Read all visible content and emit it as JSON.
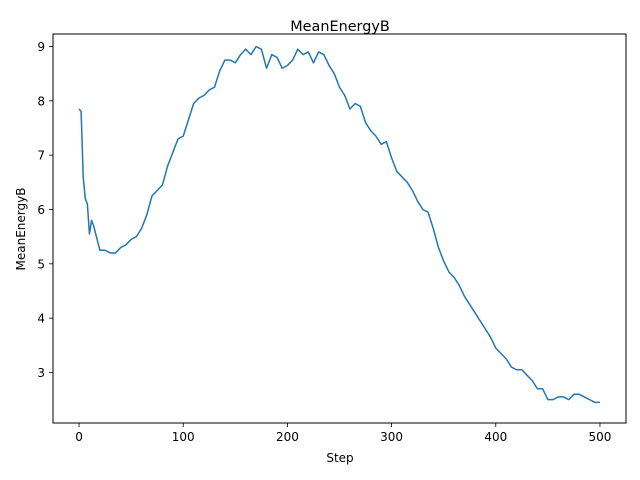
{
  "chart_data": {
    "type": "line",
    "title": "MeanEnergyB",
    "xlabel": "Step",
    "ylabel": "MeanEnergyB",
    "xlim": [
      -25,
      525
    ],
    "ylim": [
      2.07,
      9.23
    ],
    "xticks": [
      0,
      100,
      200,
      300,
      400,
      500
    ],
    "yticks": [
      3,
      4,
      5,
      6,
      7,
      8,
      9
    ],
    "grid": false,
    "line_color": "#1f77b4",
    "series": [
      {
        "values_note_x": "step",
        "x": [
          0,
          2,
          4,
          6,
          8,
          10,
          12,
          14,
          16,
          18,
          20,
          25,
          30,
          35,
          40,
          45,
          50,
          55,
          60,
          65,
          70,
          75,
          80,
          85,
          90,
          95,
          100,
          105,
          110,
          115,
          120,
          125,
          130,
          135,
          140,
          145,
          150,
          155,
          160,
          165,
          170,
          175,
          180,
          185,
          190,
          195,
          200,
          205,
          210,
          215,
          220,
          225,
          230,
          235,
          240,
          245,
          250,
          255,
          260,
          265,
          270,
          275,
          280,
          285,
          290,
          295,
          300,
          305,
          310,
          315,
          320,
          325,
          330,
          335,
          340,
          345,
          350,
          355,
          360,
          365,
          370,
          375,
          380,
          385,
          390,
          395,
          400,
          405,
          410,
          415,
          420,
          425,
          430,
          435,
          440,
          445,
          450,
          455,
          460,
          465,
          470,
          475,
          480,
          485,
          490,
          495,
          500
        ],
        "y": [
          7.85,
          7.8,
          6.6,
          6.2,
          6.1,
          5.55,
          5.8,
          5.7,
          5.55,
          5.4,
          5.25,
          5.25,
          5.2,
          5.2,
          5.3,
          5.35,
          5.45,
          5.5,
          5.65,
          5.9,
          6.25,
          6.35,
          6.45,
          6.8,
          7.05,
          7.3,
          7.35,
          7.65,
          7.95,
          8.05,
          8.1,
          8.2,
          8.25,
          8.55,
          8.75,
          8.75,
          8.7,
          8.85,
          8.95,
          8.85,
          9.0,
          8.95,
          8.6,
          8.85,
          8.8,
          8.6,
          8.65,
          8.75,
          8.95,
          8.85,
          8.9,
          8.7,
          8.9,
          8.85,
          8.65,
          8.5,
          8.25,
          8.1,
          7.85,
          7.95,
          7.9,
          7.6,
          7.45,
          7.35,
          7.2,
          7.25,
          6.95,
          6.7,
          6.6,
          6.5,
          6.35,
          6.15,
          6.0,
          5.95,
          5.65,
          5.3,
          5.05,
          4.85,
          4.75,
          4.6,
          4.4,
          4.25,
          4.1,
          3.95,
          3.8,
          3.65,
          3.45,
          3.35,
          3.25,
          3.1,
          3.05,
          3.05,
          2.95,
          2.85,
          2.7,
          2.7,
          2.5,
          2.5,
          2.55,
          2.55,
          2.5,
          2.6,
          2.6,
          2.55,
          2.5,
          2.45,
          2.45
        ]
      }
    ]
  }
}
